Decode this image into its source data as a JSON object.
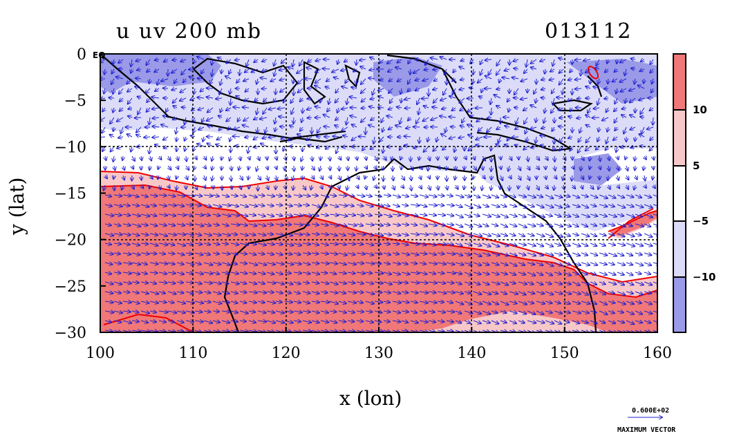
{
  "title_left": "u uv 200 mb",
  "title_right": "013112",
  "eq_label": "EQ",
  "xlabel": "x (lon)",
  "ylabel": "y (lat)",
  "chart_data": {
    "type": "heatmap",
    "x": {
      "range": [
        100,
        160
      ],
      "ticks": [
        100,
        110,
        120,
        130,
        140,
        150,
        160
      ]
    },
    "y": {
      "range": [
        -30,
        0
      ],
      "tick_labels": [
        "0",
        "−5",
        "−10",
        "−15",
        "−20",
        "−25",
        "−30"
      ],
      "tick_values": [
        0,
        -5,
        -10,
        -15,
        -20,
        -25,
        -30
      ]
    },
    "grid": true,
    "colorbar": {
      "labels": [
        "10",
        "5",
        "−5",
        "−10"
      ],
      "levels": [
        10,
        5,
        -5,
        -10
      ],
      "colors": [
        "#f07878",
        "#f8c8c8",
        "#ffffff",
        "#dcdcf8",
        "#9a9ae8"
      ]
    },
    "vector_legend": {
      "value": "0.600E+02",
      "label": "MAXIMUM VECTOR"
    },
    "colors": {
      "strong_pos": "#f07878",
      "weak_pos": "#f8c8c8",
      "weak_neg": "#dcdcf8",
      "strong_neg": "#9a9ae8",
      "contour": "#ee0000",
      "vector": "#2020d0",
      "coast": "#000000"
    }
  }
}
